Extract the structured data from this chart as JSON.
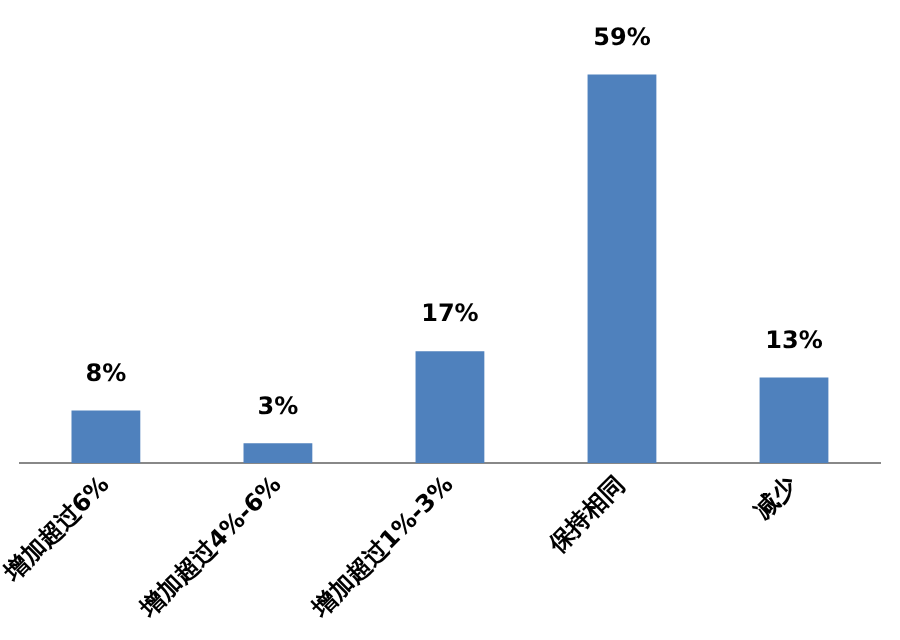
{
  "chart_data": {
    "type": "bar",
    "categories": [
      "增加超过6%",
      "增加超过4%-6%",
      "增加超过1%-3%",
      "保持相同",
      "减少"
    ],
    "values": [
      8,
      3,
      17,
      59,
      13
    ],
    "value_labels": [
      "8%",
      "3%",
      "17%",
      "59%",
      "13%"
    ],
    "color": "#4f81bd",
    "grid": false,
    "legend": false
  }
}
